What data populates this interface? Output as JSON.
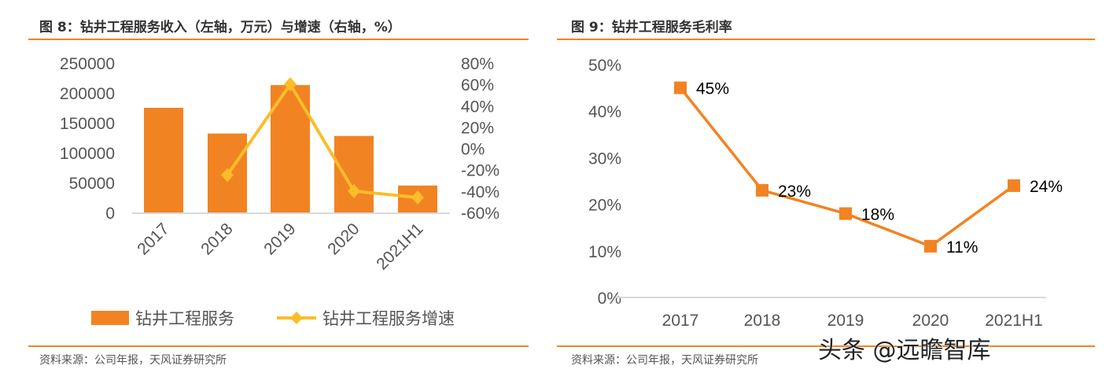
{
  "chart_data": [
    {
      "type": "bar+line",
      "title": "图 8：钻井工程服务收入（左轴，万元）与增速（右轴，%）",
      "categories": [
        "2017",
        "2018",
        "2019",
        "2020",
        "2021H1"
      ],
      "series": [
        {
          "name": "钻井工程服务",
          "type": "bar",
          "axis": "left",
          "values": [
            175000,
            132000,
            213000,
            128000,
            45000
          ]
        },
        {
          "name": "钻井工程服务增速",
          "type": "line",
          "axis": "right",
          "values": [
            null,
            -25,
            60,
            -40,
            -46
          ]
        }
      ],
      "ylim_left": [
        0,
        250000
      ],
      "yticks_left": [
        "0",
        "50000",
        "100000",
        "150000",
        "200000",
        "250000"
      ],
      "ylim_right": [
        -60,
        80
      ],
      "yticks_right": [
        "-60%",
        "-40%",
        "-20%",
        "0%",
        "20%",
        "40%",
        "60%",
        "80%"
      ],
      "legend": "bottom",
      "source": "资料来源：公司年报，天风证券研究所",
      "colors": {
        "bar": "#F28322",
        "line": "#FBBD2B"
      }
    },
    {
      "type": "line",
      "title": "图 9：钻井工程服务毛利率",
      "categories": [
        "2017",
        "2018",
        "2019",
        "2020",
        "2021H1"
      ],
      "series": [
        {
          "values": [
            45,
            23,
            18,
            11,
            24
          ],
          "labels": [
            "45%",
            "23%",
            "18%",
            "11%",
            "24%"
          ]
        }
      ],
      "ylim": [
        0,
        50
      ],
      "yticks": [
        "0%",
        "10%",
        "20%",
        "30%",
        "40%",
        "50%"
      ],
      "source": "资料来源：公司年报，天风证券研究所",
      "colors": {
        "line": "#F28322"
      }
    }
  ],
  "watermark": "头条 @远瞻智库"
}
